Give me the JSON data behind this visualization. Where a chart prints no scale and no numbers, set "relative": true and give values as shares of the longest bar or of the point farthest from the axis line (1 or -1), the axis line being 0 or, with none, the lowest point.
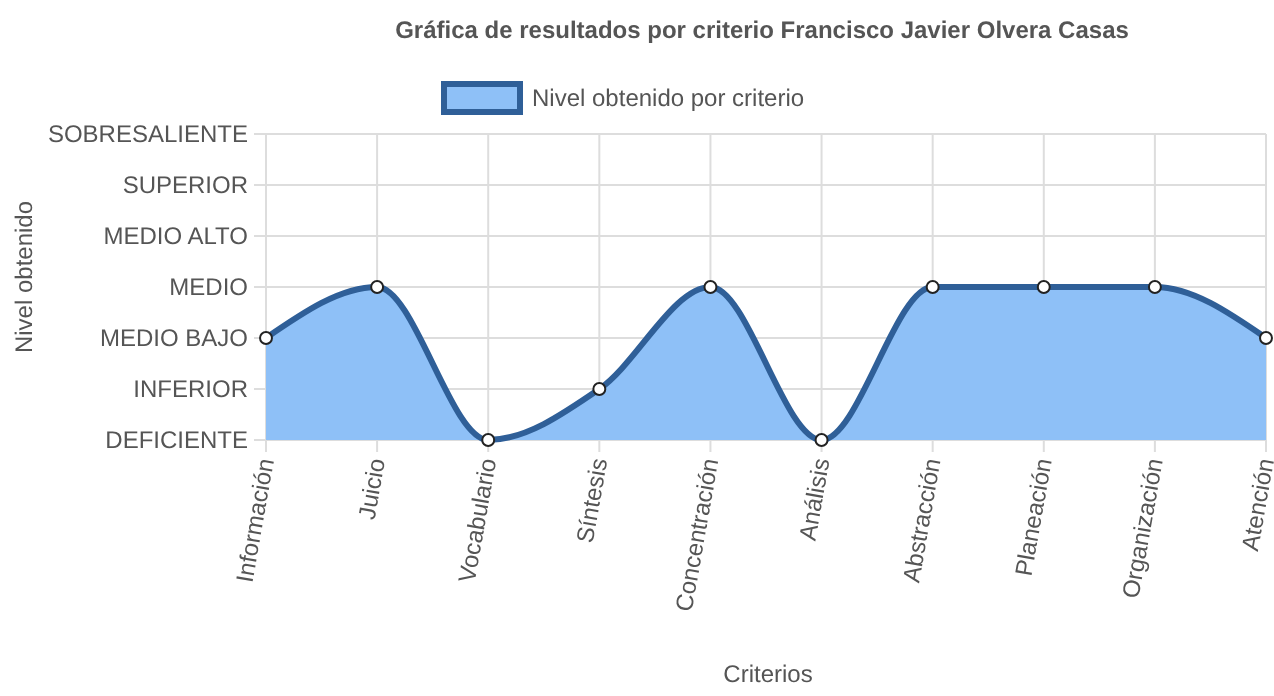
{
  "chart_data": {
    "type": "area",
    "title": "Gráfica de resultados por criterio Francisco Javier Olvera Casas",
    "xlabel": "Criterios",
    "categories": [
      "Información",
      "Juicio",
      "Vocabulario",
      "Síntesis",
      "Concentración",
      "Análisis",
      "Abstracción",
      "Planeación",
      "Organización",
      "Atención"
    ],
    "relative": true,
    "series": [
      {
        "name": "Nivel obtenido por criterio",
        "color": "#2f5f98",
        "values": [
          0.667,
          1,
          0,
          0.333,
          1,
          0,
          1,
          1,
          1,
          0.667
        ]
      }
    ],
    "annotations": [
      "Nivel obtenido",
      "DEFICIENTE",
      "INFERIOR",
      "MEDIO BAJO",
      "MEDIO",
      "MEDIO ALTO",
      "SUPERIOR",
      "SOBRESALIENTE"
    ],
    "grid": true,
    "legend": "top",
    "marker": "circle",
    "line_style": "solid"
  }
}
